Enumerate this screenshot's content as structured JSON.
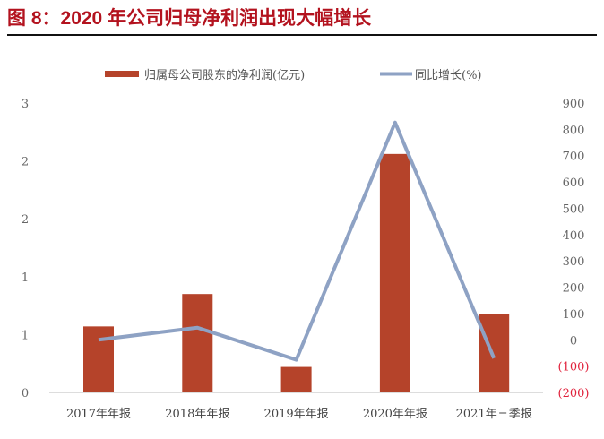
{
  "title": "图 8：2020 年公司归母净利润出现大幅增长",
  "chart_data": {
    "type": "bar+line",
    "categories": [
      "2017年年报",
      "2018年年报",
      "2019年年报",
      "2020年年报",
      "2021年三季报"
    ],
    "series": [
      {
        "name": "归属母公司股东的净利润(亿元)",
        "type": "bar",
        "axis": "left",
        "color": "#b5432a",
        "values": [
          0.57,
          0.85,
          0.22,
          2.06,
          0.68
        ]
      },
      {
        "name": "同比增长(%)",
        "type": "line",
        "axis": "right",
        "color": "#8ea2c4",
        "values": [
          0,
          46,
          -76,
          826,
          -70
        ]
      }
    ],
    "left_ticks": [
      "3",
      "2",
      "2",
      "1",
      "1",
      "0"
    ],
    "left_range": [
      0,
      2.5
    ],
    "right_ticks": [
      "900",
      "800",
      "700",
      "600",
      "500",
      "400",
      "300",
      "200",
      "100",
      "0",
      "(100)",
      "(200)"
    ],
    "right_range": [
      -200,
      900
    ],
    "negative_tick_color": "#e0203a",
    "legend_position": "top",
    "grid": false
  }
}
